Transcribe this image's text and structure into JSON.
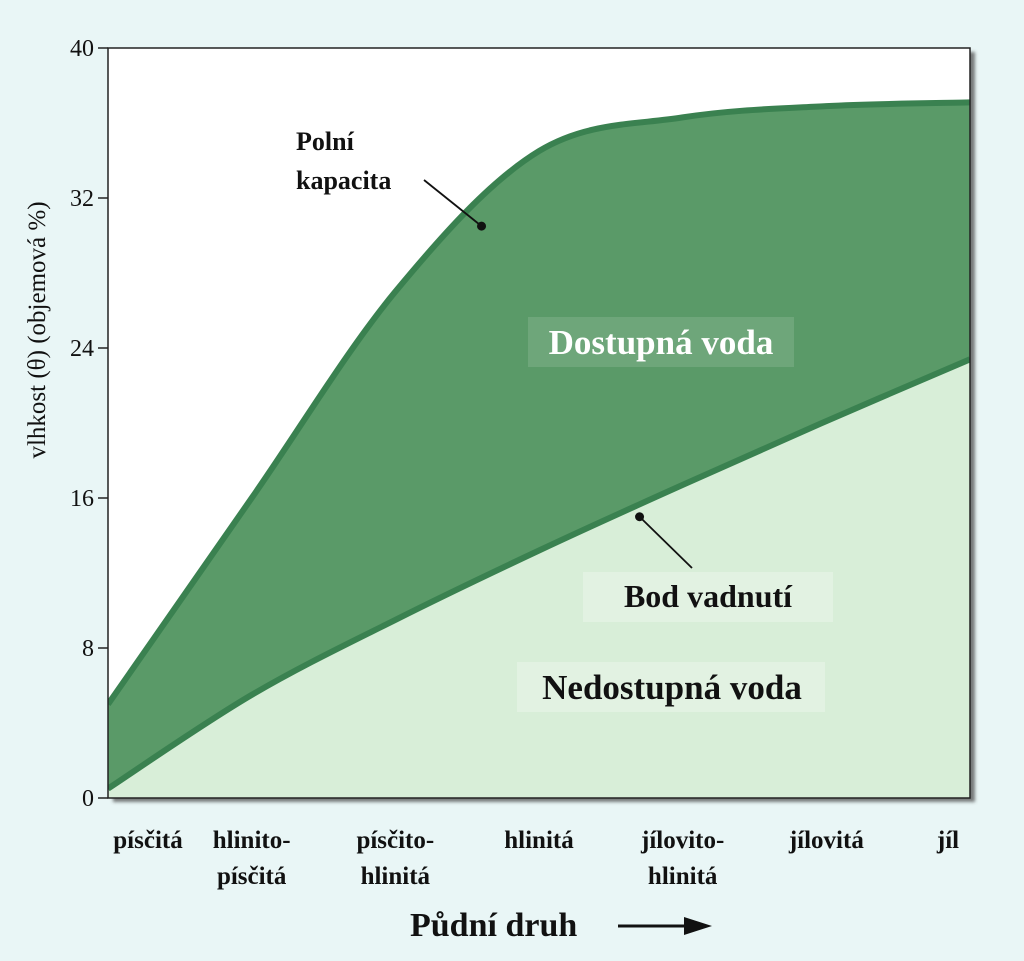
{
  "chart_data": {
    "type": "area",
    "categories": [
      "písčitá",
      "hlinito-\npísčitá",
      "písčito-\nhlinitá",
      "hlinitá",
      "jílovito-\nhlinitá",
      "jílovitá",
      "jíl"
    ],
    "x": [
      0,
      1,
      2,
      3,
      4,
      5,
      6
    ],
    "series": [
      {
        "name": "Polní kapacita",
        "values": [
          5,
          16,
          27,
          34.5,
          36.3,
          36.9,
          37.1
        ]
      },
      {
        "name": "Bod vadnutí",
        "values": [
          0.5,
          5.5,
          9.5,
          13.2,
          16.7,
          20.1,
          23.4
        ]
      }
    ],
    "ylabel": "vlhkost (θ) (objemová %)",
    "xlabel": "Půdní druh",
    "ylim": [
      0,
      40
    ],
    "yticks": [
      0,
      8,
      16,
      24,
      32,
      40
    ],
    "grid": false,
    "annotations": {
      "field_capacity": {
        "line1": "Polní",
        "line2": "kapacita",
        "point_x": 2.6,
        "point_y": 30.5
      },
      "wilting_point": {
        "text": "Bod vadnutí",
        "point_x": 3.7,
        "point_y": 15
      }
    },
    "regions": {
      "available": "Dostupná voda",
      "unavailable": "Nedostupná voda"
    },
    "colors": {
      "background": "#e9f6f6",
      "plot_bg": "#ffffff",
      "available_fill": "#5a9a68",
      "available_edge": "#3a8150",
      "unavailable_fill": "#d8eed8",
      "label_box_available": "#6ea67a",
      "label_box_unavailable": "#e2f2e2"
    }
  }
}
